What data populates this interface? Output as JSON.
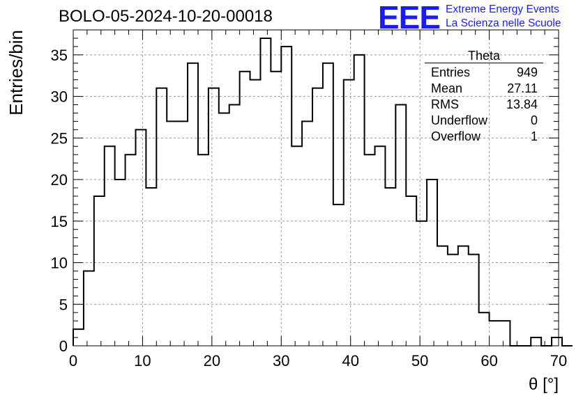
{
  "header": {
    "run_title": "BOLO-05-2024-10-20-00018"
  },
  "logo": {
    "mark": "EEE",
    "line1": "Extreme Energy Events",
    "line2": "La Scienza nelle Scuole",
    "color": "#1a1aff"
  },
  "stats": {
    "title": "Theta",
    "rows": [
      {
        "label": "Entries",
        "value": "949"
      },
      {
        "label": "Mean",
        "value": "27.11"
      },
      {
        "label": "RMS",
        "value": "13.84"
      },
      {
        "label": "Underflow",
        "value": "0"
      },
      {
        "label": "Overflow",
        "value": "1"
      }
    ]
  },
  "chart_data": {
    "type": "histogram",
    "xlabel": "θ [°]",
    "ylabel": "Entries/bin",
    "xlim": [
      0,
      70
    ],
    "ylim": [
      0,
      38
    ],
    "bin_width": 1.5,
    "bin_edges_start": 0,
    "counts": [
      2,
      9,
      18,
      24,
      20,
      23,
      26,
      19,
      31,
      27,
      27,
      34,
      23,
      31,
      28,
      29,
      33,
      32,
      37,
      33,
      36,
      24,
      27,
      31,
      34,
      17,
      32,
      35,
      23,
      24,
      19,
      29,
      18,
      15,
      20,
      12,
      11,
      12,
      11,
      4,
      3,
      3,
      0,
      0,
      1,
      0,
      1,
      0
    ],
    "x_ticks": [
      0,
      10,
      20,
      30,
      40,
      50,
      60,
      70
    ],
    "y_ticks": [
      0,
      5,
      10,
      15,
      20,
      25,
      30,
      35
    ],
    "grid": true,
    "line_color": "#000000"
  }
}
